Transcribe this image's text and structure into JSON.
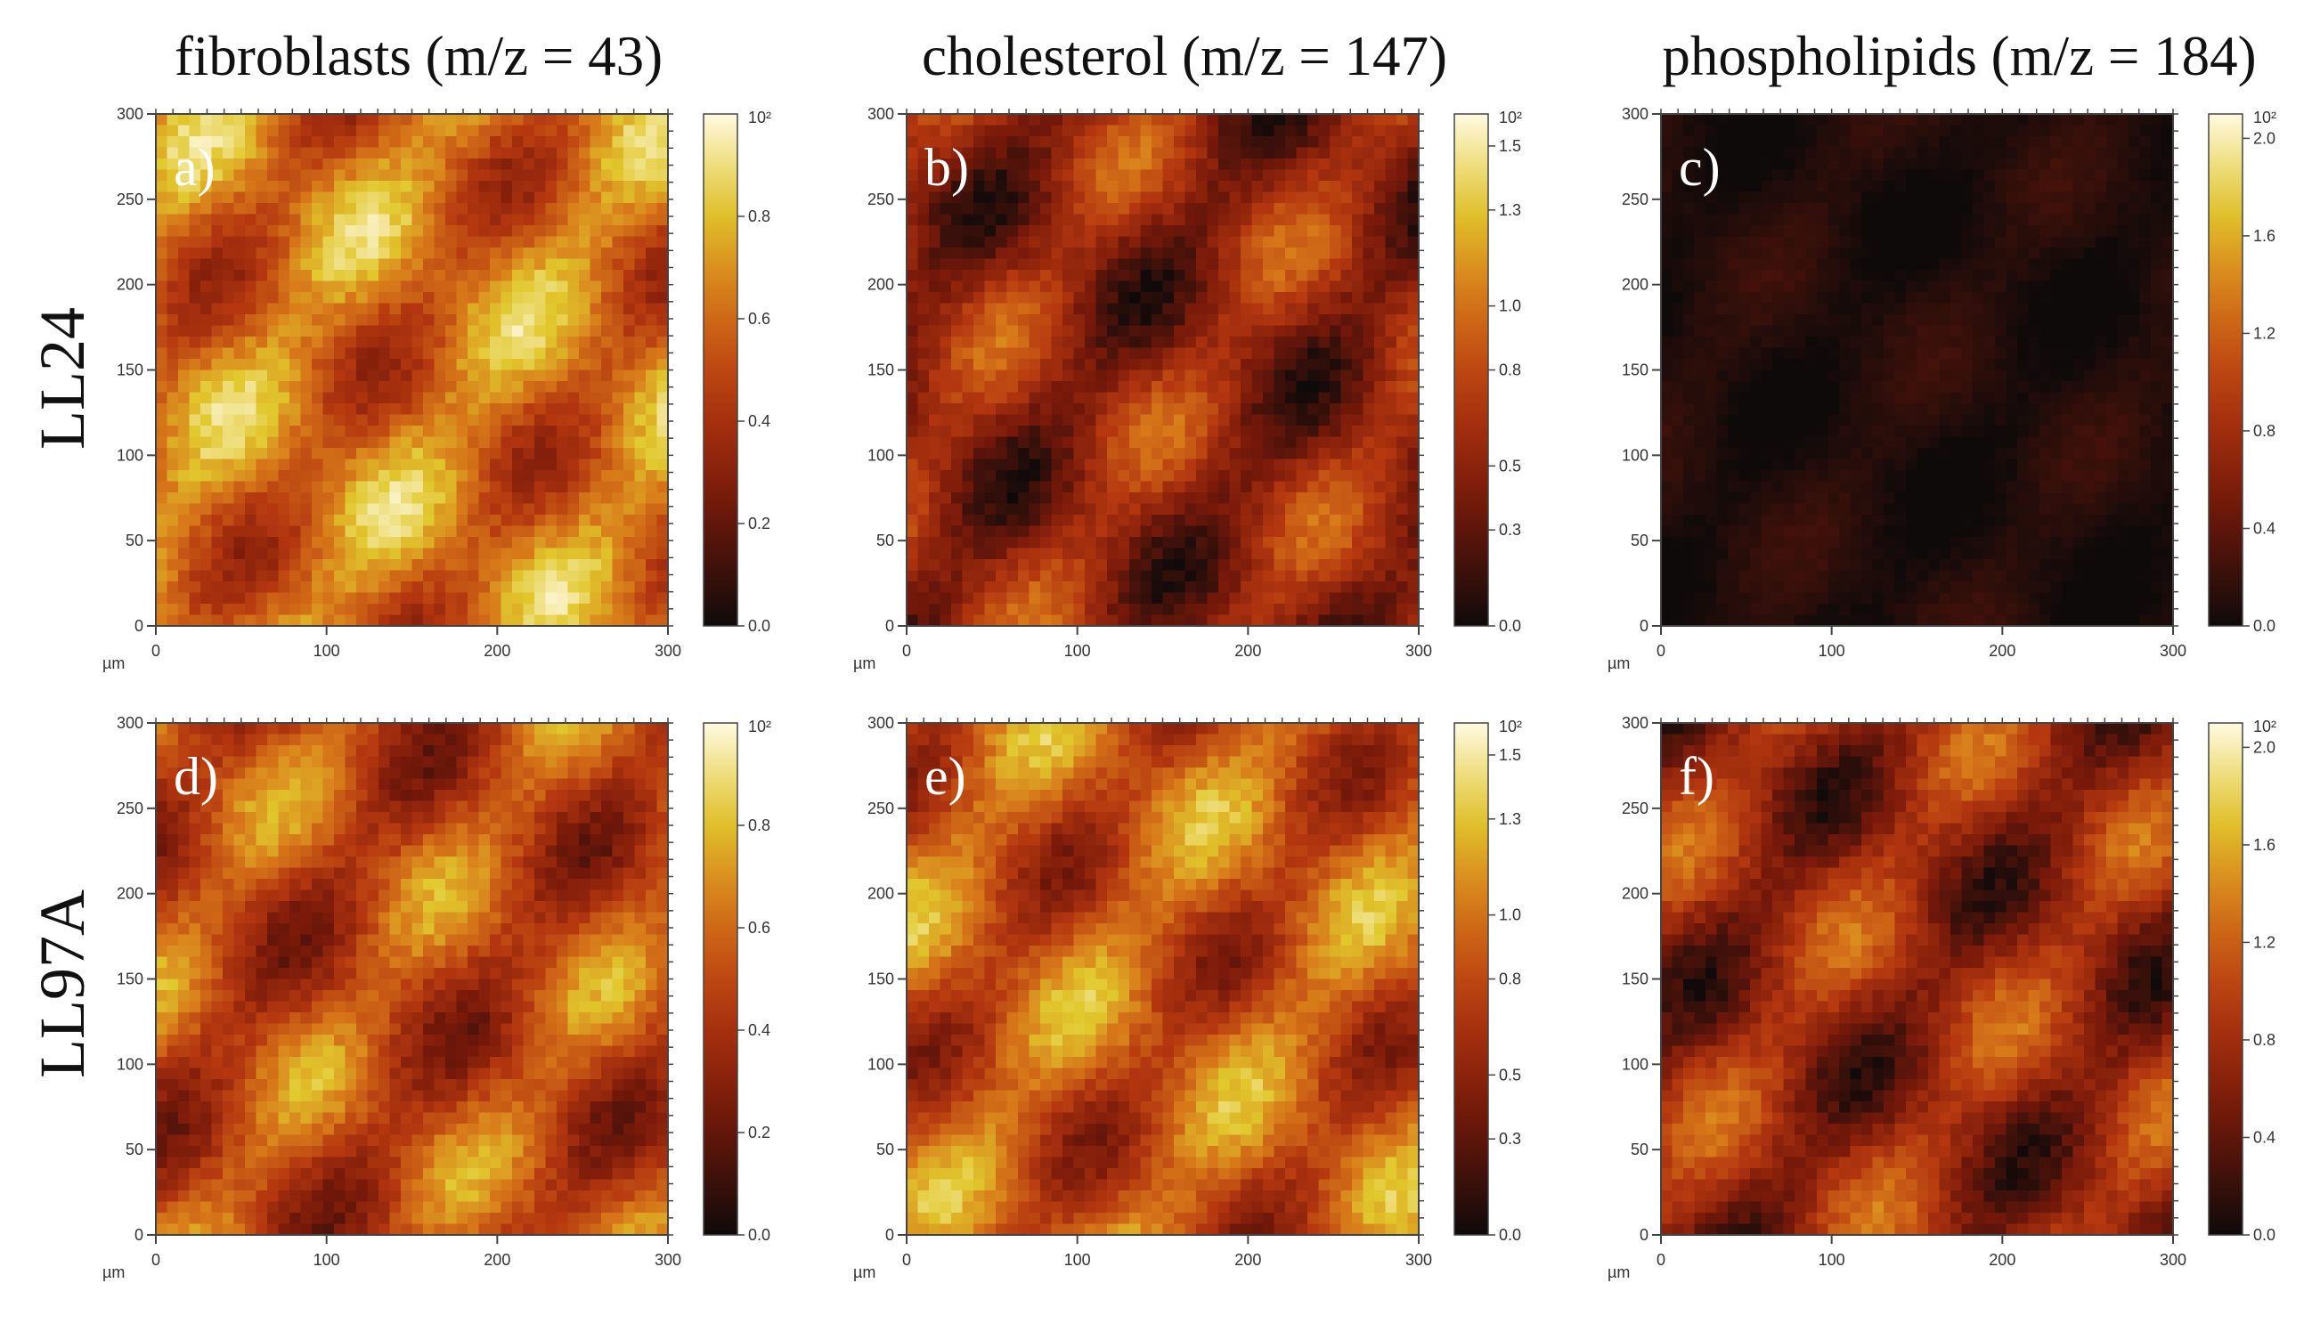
{
  "columns": [
    "fibroblasts (m/z = 43)",
    "cholesterol (m/z = 147)",
    "phospholipids (m/z = 184)"
  ],
  "rows": [
    "LL24",
    "LL97A"
  ],
  "axis": {
    "unit": "µm",
    "ticks": [
      "0",
      "100",
      "200",
      "300"
    ],
    "yticks": [
      "0",
      "50",
      "100",
      "150",
      "200",
      "250",
      "300"
    ]
  },
  "chart_data": [
    {
      "type": "heatmap",
      "panel": "a)",
      "row": "LL24",
      "column": "fibroblasts (m/z = 43)",
      "xlim": [
        0,
        300
      ],
      "ylim": [
        0,
        300
      ],
      "colorbar": {
        "exponent": "10²",
        "ticks": [
          "0.0",
          "0.2",
          "0.4",
          "0.6",
          "0.8"
        ],
        "range": [
          0,
          1.0
        ]
      },
      "mean_level": 0.62
    },
    {
      "type": "heatmap",
      "panel": "b)",
      "row": "LL24",
      "column": "cholesterol (m/z = 147)",
      "xlim": [
        0,
        300
      ],
      "ylim": [
        0,
        300
      ],
      "colorbar": {
        "exponent": "10²",
        "ticks": [
          "0.0",
          "0.3",
          "0.5",
          "0.8",
          "1.0",
          "1.3",
          "1.5"
        ],
        "range": [
          0,
          1.6
        ]
      },
      "mean_level": 0.33
    },
    {
      "type": "heatmap",
      "panel": "c)",
      "row": "LL24",
      "column": "phospholipids (m/z = 184)",
      "xlim": [
        0,
        300
      ],
      "ylim": [
        0,
        300
      ],
      "colorbar": {
        "exponent": "10²",
        "ticks": [
          "0.0",
          "0.4",
          "0.8",
          "1.2",
          "1.6",
          "2.0"
        ],
        "range": [
          0,
          2.1
        ]
      },
      "mean_level": 0.04
    },
    {
      "type": "heatmap",
      "panel": "d)",
      "row": "LL97A",
      "column": "fibroblasts (m/z = 43)",
      "xlim": [
        0,
        300
      ],
      "ylim": [
        0,
        300
      ],
      "colorbar": {
        "exponent": "10²",
        "ticks": [
          "0.0",
          "0.2",
          "0.4",
          "0.6",
          "0.8"
        ],
        "range": [
          0,
          1.0
        ]
      },
      "mean_level": 0.5
    },
    {
      "type": "heatmap",
      "panel": "e)",
      "row": "LL97A",
      "column": "cholesterol (m/z = 147)",
      "xlim": [
        0,
        300
      ],
      "ylim": [
        0,
        300
      ],
      "colorbar": {
        "exponent": "10²",
        "ticks": [
          "0.0",
          "0.3",
          "0.5",
          "0.8",
          "1.0",
          "1.3",
          "1.5"
        ],
        "range": [
          0,
          1.6
        ]
      },
      "mean_level": 0.55
    },
    {
      "type": "heatmap",
      "panel": "f)",
      "row": "LL97A",
      "column": "phospholipids (m/z = 184)",
      "xlim": [
        0,
        300
      ],
      "ylim": [
        0,
        300
      ],
      "colorbar": {
        "exponent": "10²",
        "ticks": [
          "0.0",
          "0.4",
          "0.8",
          "1.2",
          "1.6",
          "2.0"
        ],
        "range": [
          0,
          2.1
        ]
      },
      "mean_level": 0.35
    }
  ]
}
